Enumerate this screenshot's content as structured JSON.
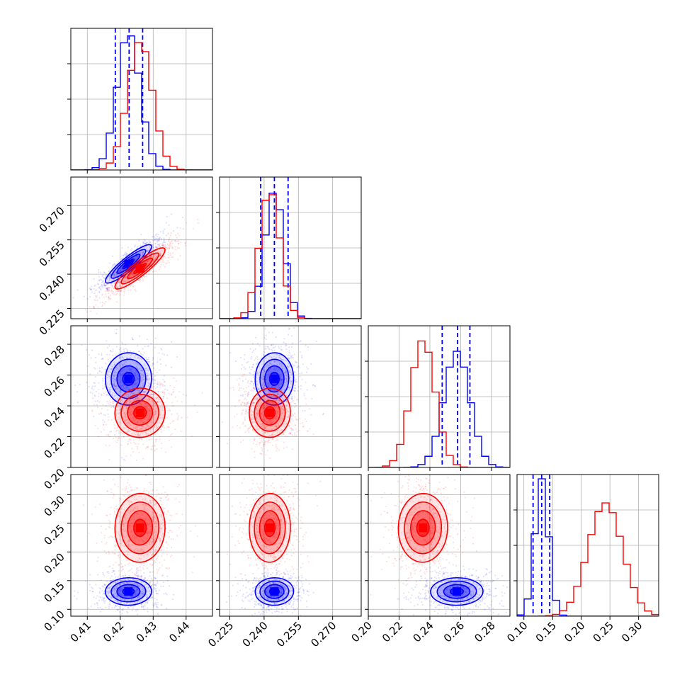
{
  "chart_data": {
    "type": "corner",
    "parameters": [
      {
        "ticks": [
          0.41,
          0.42,
          0.43,
          0.44
        ],
        "tick_labels": [
          "0.41",
          "0.42",
          "0.43",
          "0.44"
        ],
        "range": [
          0.405,
          0.448
        ]
      },
      {
        "ticks": [
          0.225,
          0.24,
          0.255,
          0.27
        ],
        "tick_labels": [
          "0.225",
          "0.240",
          "0.255",
          "0.270"
        ],
        "range": [
          0.2205,
          0.2825
        ]
      },
      {
        "ticks": [
          0.2,
          0.22,
          0.24,
          0.26,
          0.28
        ],
        "tick_labels": [
          "0.20",
          "0.22",
          "0.24",
          "0.26",
          "0.28"
        ],
        "range": [
          0.2,
          0.292
        ]
      },
      {
        "ticks": [
          0.1,
          0.15,
          0.2,
          0.25,
          0.3
        ],
        "tick_labels": [
          "0.10",
          "0.15",
          "0.20",
          "0.25",
          "0.30"
        ],
        "range": [
          0.088,
          0.335
        ]
      }
    ],
    "series": [
      {
        "color": "#0000ff",
        "means": [
          0.4225,
          0.2445,
          0.2575,
          0.131
        ],
        "sigmas": [
          0.0035,
          0.0042,
          0.0085,
          0.012
        ],
        "correlations": [
          [
            1,
            0.9,
            0.02,
            0.02
          ],
          [
            0.9,
            1,
            0.02,
            0.02
          ],
          [
            0.02,
            0.02,
            1,
            0.02
          ],
          [
            0.02,
            0.02,
            0.02,
            1
          ]
        ],
        "quantiles": [
          [
            0.4185,
            0.4227,
            0.4268
          ],
          [
            0.2385,
            0.2445,
            0.2505
          ],
          [
            0.248,
            0.258,
            0.266
          ],
          [
            0.116,
            0.131,
            0.145
          ]
        ],
        "hist_peak": [
          0.97,
          0.9,
          0.82,
          0.97
        ]
      },
      {
        "color": "#ff0000",
        "means": [
          0.426,
          0.2425,
          0.2355,
          0.242
        ],
        "sigmas": [
          0.0038,
          0.0045,
          0.008,
          0.03
        ],
        "correlations": [
          [
            1,
            0.9,
            0.02,
            0.02
          ],
          [
            0.9,
            1,
            0.02,
            0.02
          ],
          [
            0.02,
            0.02,
            1,
            0.02
          ],
          [
            0.02,
            0.02,
            0.02,
            1
          ]
        ],
        "hist_peak": [
          0.91,
          0.91,
          0.9,
          0.8
        ]
      }
    ],
    "grid": true,
    "legend": "none"
  }
}
